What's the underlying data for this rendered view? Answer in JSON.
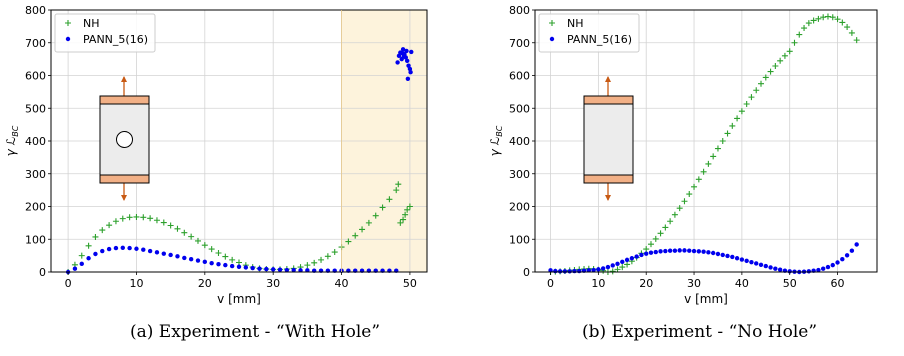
{
  "chart_data": [
    {
      "type": "scatter",
      "xlabel": "v [mm]",
      "ylabel": "γ ℒ_BC",
      "xlim": [
        -2.5,
        52.5
      ],
      "ylim": [
        0,
        800
      ],
      "xticks": [
        0,
        10,
        20,
        30,
        40,
        50
      ],
      "yticks": [
        0,
        100,
        200,
        300,
        400,
        500,
        600,
        700,
        800
      ],
      "grid": true,
      "legend": "top-left",
      "highlight_band": {
        "x": [
          40,
          52.5
        ],
        "color": "#fdf3dc"
      },
      "series": [
        {
          "name": "NH",
          "marker": "plus",
          "color": "#2ca02c",
          "x": [
            0,
            1,
            2,
            3,
            4,
            5,
            6,
            7,
            8,
            9,
            10,
            11,
            12,
            13,
            14,
            15,
            16,
            17,
            18,
            19,
            20,
            21,
            22,
            23,
            24,
            25,
            26,
            27,
            28,
            29,
            30,
            31,
            32,
            33,
            34,
            35,
            36,
            37,
            38,
            39,
            40,
            41,
            42,
            43,
            44,
            45,
            46,
            47,
            48,
            48.3,
            48.6,
            49,
            49.3,
            49.6,
            50
          ],
          "y": [
            0,
            22,
            50,
            80,
            107,
            128,
            143,
            155,
            163,
            167,
            168,
            167,
            164,
            158,
            151,
            142,
            132,
            120,
            108,
            95,
            82,
            70,
            58,
            47,
            37,
            29,
            21,
            15,
            11,
            9,
            8,
            8,
            9,
            11,
            15,
            21,
            28,
            37,
            48,
            61,
            76,
            93,
            111,
            130,
            150,
            172,
            197,
            222,
            250,
            268,
            150,
            160,
            175,
            190,
            200
          ]
        },
        {
          "name": "PANN_5(16)",
          "marker": "dot",
          "color": "#0000ee",
          "x": [
            0,
            1,
            2,
            3,
            4,
            5,
            6,
            7,
            8,
            9,
            10,
            11,
            12,
            13,
            14,
            15,
            16,
            17,
            18,
            19,
            20,
            21,
            22,
            23,
            24,
            25,
            26,
            27,
            28,
            29,
            30,
            31,
            32,
            33,
            34,
            35,
            36,
            37,
            38,
            39,
            40,
            41,
            42,
            43,
            44,
            45,
            46,
            47,
            48,
            48.2,
            48.4,
            48.6,
            48.8,
            49,
            49.2,
            49.4,
            49.6,
            49.8,
            50,
            50.1,
            49.5,
            49.7,
            48.9,
            49.1,
            50.2
          ],
          "y": [
            0,
            10,
            25,
            42,
            55,
            64,
            70,
            73,
            74,
            73,
            71,
            68,
            64,
            60,
            56,
            52,
            48,
            43,
            39,
            35,
            31,
            27,
            24,
            21,
            18,
            16,
            14,
            12,
            10,
            9,
            8,
            7,
            6,
            6,
            5,
            5,
            4,
            4,
            4,
            4,
            4,
            4,
            4,
            4,
            4,
            4,
            4,
            4,
            4,
            640,
            660,
            670,
            650,
            680,
            665,
            655,
            645,
            630,
            620,
            610,
            675,
            590,
            668,
            658,
            672
          ]
        }
      ]
    },
    {
      "type": "scatter",
      "xlabel": "v [mm]",
      "ylabel": "γ ℒ_BC",
      "xlim": [
        -3.25,
        68.25
      ],
      "ylim": [
        0,
        800
      ],
      "xticks": [
        0,
        10,
        20,
        30,
        40,
        50,
        60
      ],
      "yticks": [
        0,
        100,
        200,
        300,
        400,
        500,
        600,
        700,
        800
      ],
      "grid": true,
      "legend": "top-left",
      "series": [
        {
          "name": "NH",
          "marker": "plus",
          "color": "#2ca02c",
          "x": [
            0,
            1,
            2,
            3,
            4,
            5,
            6,
            7,
            8,
            9,
            10,
            11,
            12,
            13,
            14,
            15,
            16,
            17,
            18,
            19,
            20,
            21,
            22,
            23,
            24,
            25,
            26,
            27,
            28,
            29,
            30,
            31,
            32,
            33,
            34,
            35,
            36,
            37,
            38,
            39,
            40,
            41,
            42,
            43,
            44,
            45,
            46,
            47,
            48,
            49,
            50,
            51,
            52,
            53,
            54,
            55,
            56,
            57,
            58,
            59,
            60,
            61,
            62,
            63,
            64
          ],
          "y": [
            0,
            1,
            2,
            3,
            5,
            6,
            8,
            9,
            10,
            9,
            7,
            4,
            0,
            2,
            8,
            15,
            23,
            33,
            44,
            57,
            70,
            85,
            101,
            118,
            136,
            155,
            175,
            195,
            216,
            238,
            260,
            283,
            306,
            330,
            353,
            377,
            400,
            423,
            446,
            469,
            491,
            513,
            534,
            555,
            575,
            594,
            612,
            629,
            645,
            660,
            674,
            700,
            725,
            745,
            760,
            768,
            773,
            778,
            780,
            778,
            772,
            762,
            748,
            730,
            708
          ]
        },
        {
          "name": "PANN_5(16)",
          "marker": "dot",
          "color": "#0000ee",
          "x": [
            0,
            1,
            2,
            3,
            4,
            5,
            6,
            7,
            8,
            9,
            10,
            11,
            12,
            13,
            14,
            15,
            16,
            17,
            18,
            19,
            20,
            21,
            22,
            23,
            24,
            25,
            26,
            27,
            28,
            29,
            30,
            31,
            32,
            33,
            34,
            35,
            36,
            37,
            38,
            39,
            40,
            41,
            42,
            43,
            44,
            45,
            46,
            47,
            48,
            49,
            50,
            51,
            52,
            53,
            54,
            55,
            56,
            57,
            58,
            59,
            60,
            61,
            62,
            63,
            64
          ],
          "y": [
            5,
            3,
            2,
            2,
            2,
            3,
            3,
            4,
            5,
            6,
            8,
            11,
            15,
            20,
            25,
            31,
            37,
            42,
            47,
            52,
            56,
            59,
            61,
            63,
            64,
            65,
            65,
            66,
            66,
            65,
            64,
            63,
            62,
            60,
            58,
            55,
            52,
            49,
            46,
            42,
            38,
            34,
            30,
            26,
            22,
            18,
            14,
            10,
            7,
            4,
            2,
            1,
            0,
            1,
            2,
            4,
            6,
            10,
            15,
            21,
            29,
            39,
            51,
            65,
            84
          ]
        }
      ]
    }
  ],
  "captions": [
    "(a) Experiment - “With Hole”",
    "(b) Experiment - “No Hole”"
  ]
}
